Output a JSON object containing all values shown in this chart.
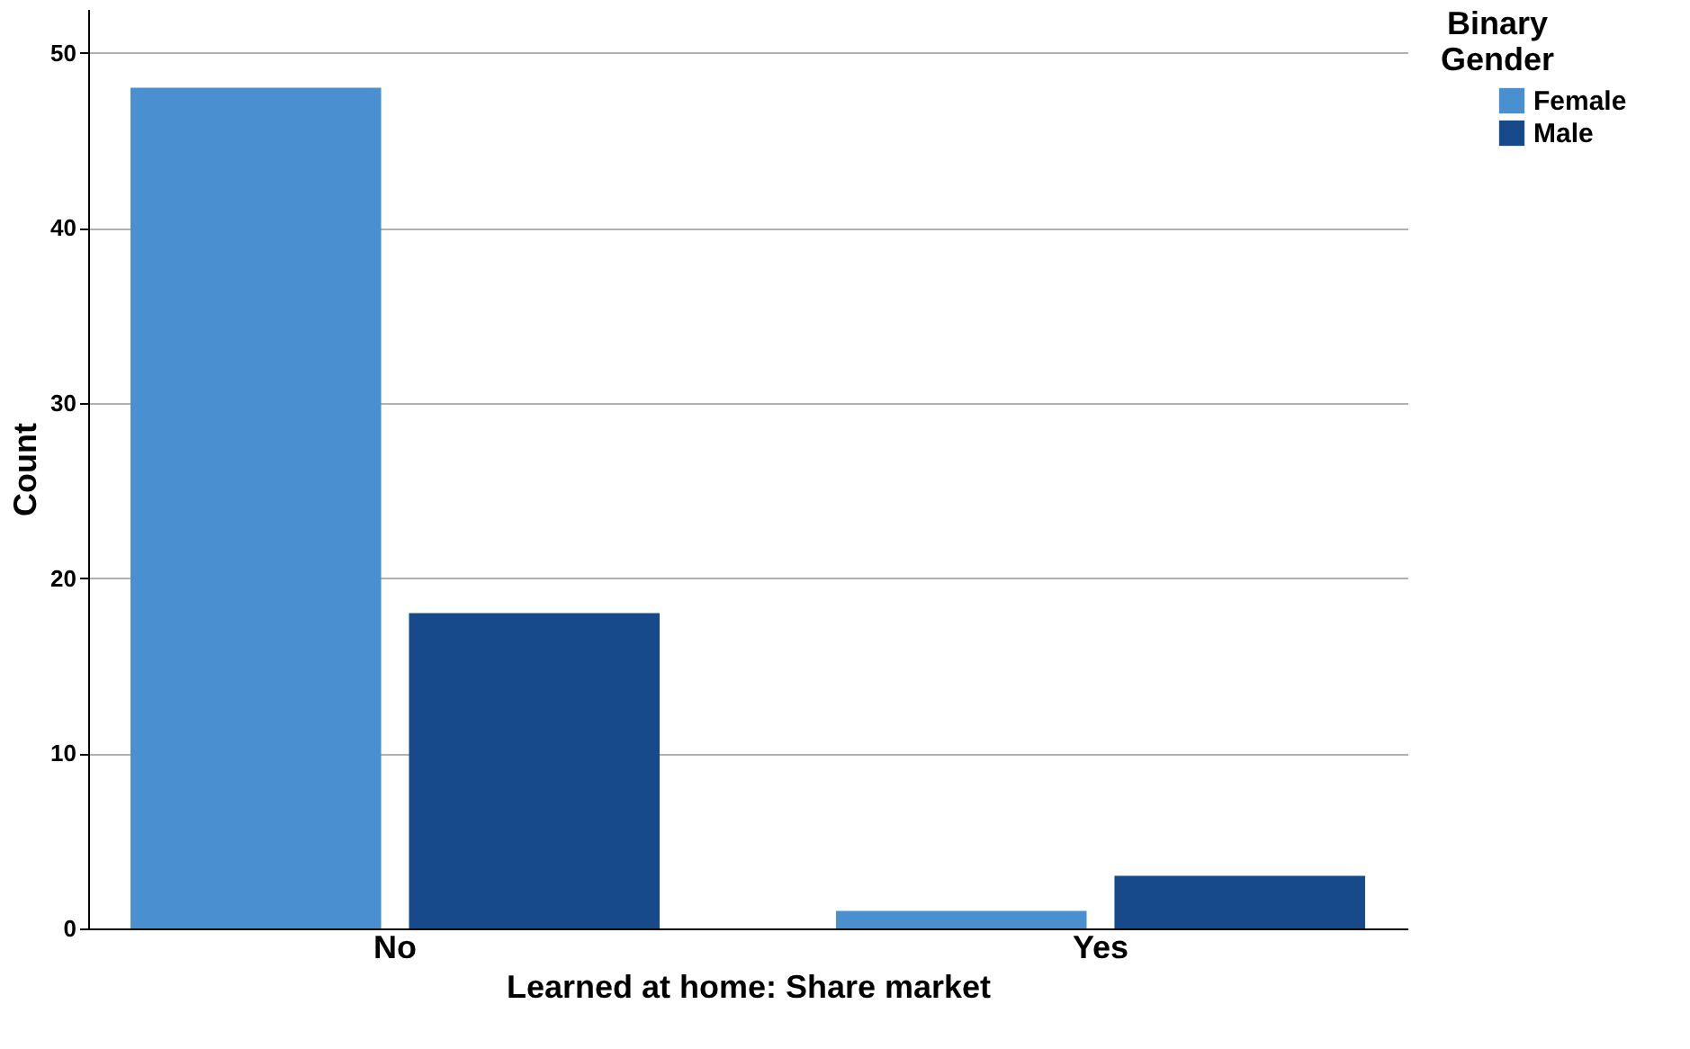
{
  "chart_data": {
    "type": "bar",
    "xlabel": "Learned at home: Share market",
    "ylabel": "Count",
    "legend_title": "Binary Gender",
    "categories": [
      "No",
      "Yes"
    ],
    "series": [
      {
        "name": "Female",
        "color": "#4a8fcf",
        "values": [
          48,
          1
        ]
      },
      {
        "name": "Male",
        "color": "#174a8b",
        "values": [
          18,
          3
        ]
      }
    ],
    "ylim": [
      0,
      52.5
    ],
    "yticks": [
      0,
      10,
      20,
      30,
      40,
      50
    ],
    "grid": "y",
    "legend": "right"
  }
}
